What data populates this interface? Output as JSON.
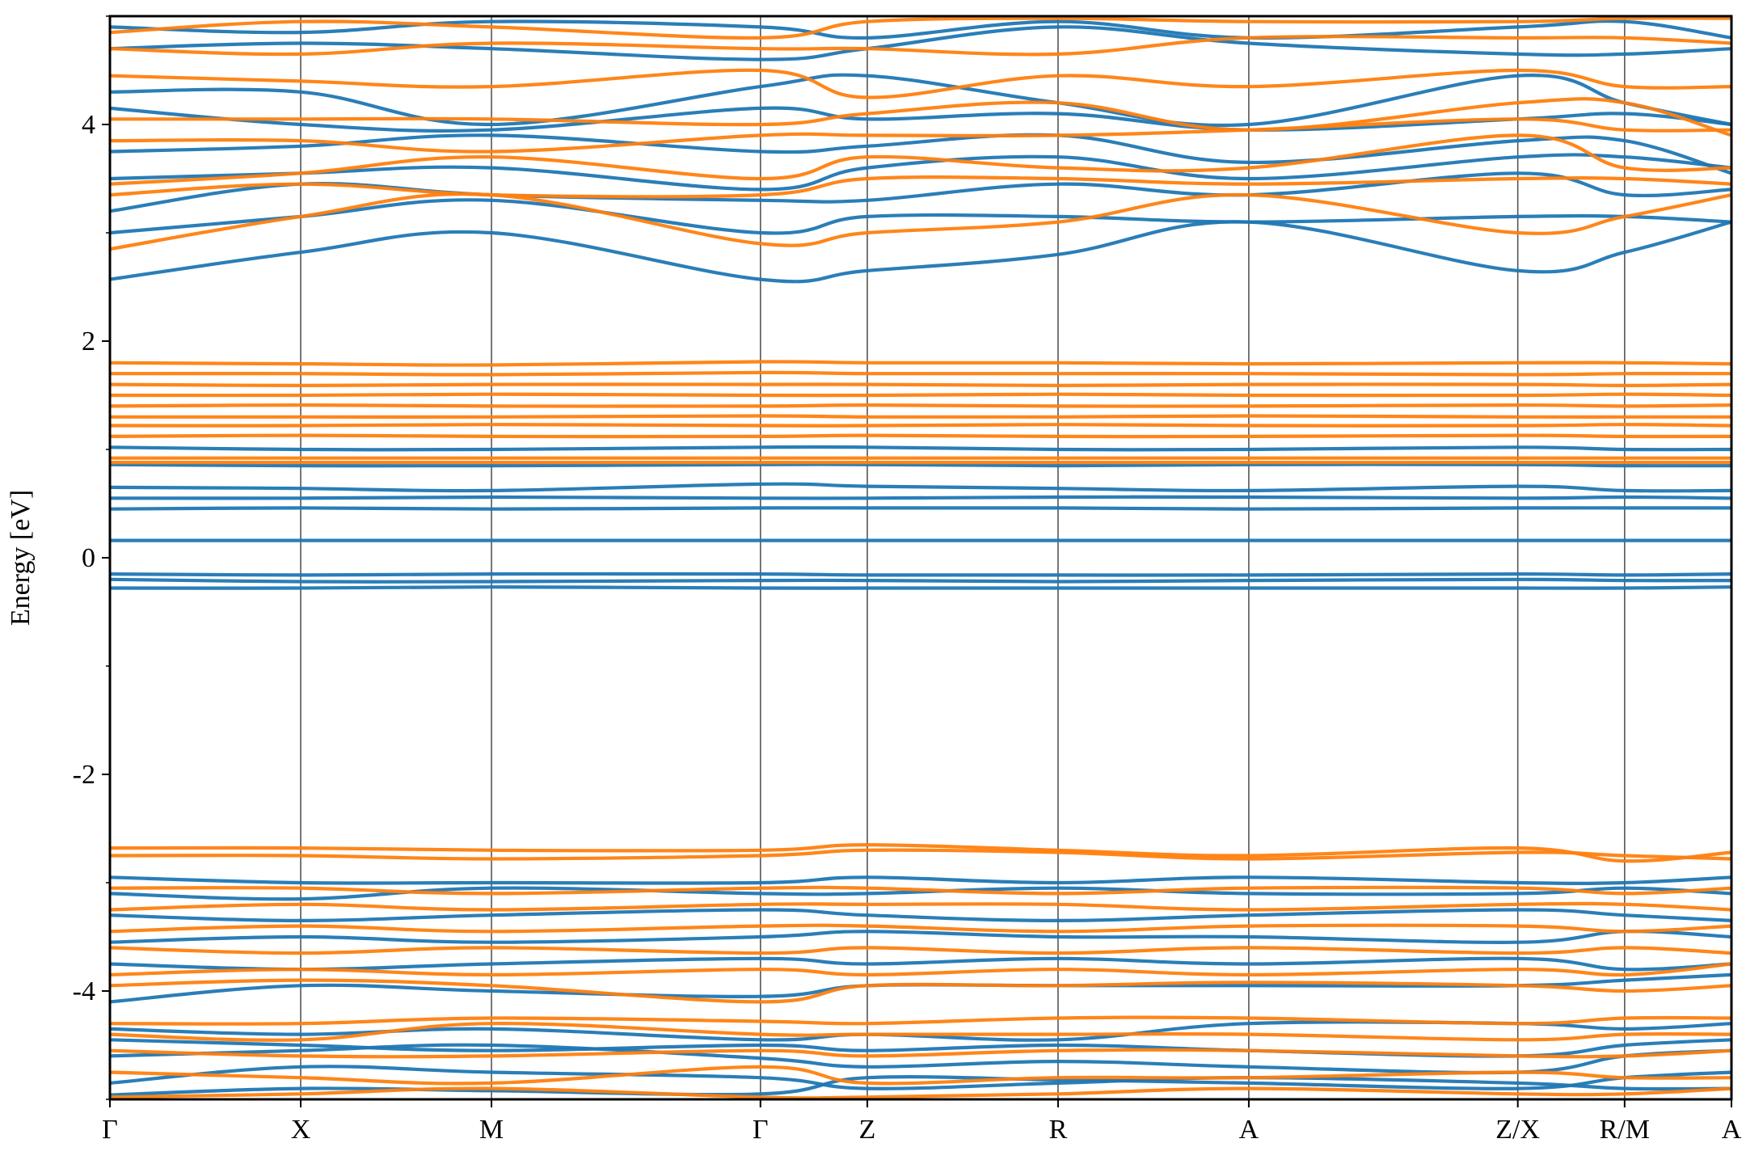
{
  "chart_data": {
    "type": "line",
    "title": "",
    "xlabel": "",
    "ylabel": "Energy [eV]",
    "ylim": [
      -5,
      5
    ],
    "yticks": [
      4,
      2,
      0,
      -2,
      -4
    ],
    "ytick_labels": [
      "4",
      "2",
      "0",
      "-2",
      "-4"
    ],
    "kpoints": [
      {
        "label": "Γ",
        "position": 0.0
      },
      {
        "label": "X",
        "position": 1.0
      },
      {
        "label": "M",
        "position": 2.0
      },
      {
        "label": "Γ",
        "position": 3.41
      },
      {
        "label": "Z",
        "position": 3.97
      },
      {
        "label": "R",
        "position": 4.97
      },
      {
        "label": "A",
        "position": 5.97
      },
      {
        "label": "Z/X",
        "position": 7.38
      },
      {
        "label": "R/M",
        "position": 7.94
      },
      {
        "label": "A",
        "position": 8.5
      }
    ],
    "grid": false,
    "legend": "none",
    "series": [
      {
        "color": "#1f77b4",
        "bands": [
          [
            -4.96,
            -4.9,
            -4.92,
            -4.95,
            -4.8,
            -4.82,
            -4.85,
            -4.9,
            -4.8,
            -4.75
          ],
          [
            -4.85,
            -4.7,
            -4.75,
            -4.8,
            -4.9,
            -4.85,
            -4.8,
            -4.85,
            -4.9,
            -4.9
          ],
          [
            -4.6,
            -4.55,
            -4.5,
            -4.62,
            -4.7,
            -4.65,
            -4.7,
            -4.75,
            -4.6,
            -4.55
          ],
          [
            -4.45,
            -4.5,
            -4.55,
            -4.5,
            -4.55,
            -4.5,
            -4.55,
            -4.6,
            -4.5,
            -4.45
          ],
          [
            -4.35,
            -4.4,
            -4.35,
            -4.45,
            -4.4,
            -4.45,
            -4.3,
            -4.3,
            -4.35,
            -4.3
          ],
          [
            -4.1,
            -3.95,
            -4.0,
            -4.05,
            -3.95,
            -3.95,
            -3.95,
            -3.95,
            -3.9,
            -3.85
          ],
          [
            -3.75,
            -3.8,
            -3.75,
            -3.7,
            -3.75,
            -3.7,
            -3.75,
            -3.7,
            -3.8,
            -3.75
          ],
          [
            -3.55,
            -3.5,
            -3.55,
            -3.5,
            -3.45,
            -3.5,
            -3.5,
            -3.55,
            -3.45,
            -3.5
          ],
          [
            -3.3,
            -3.35,
            -3.3,
            -3.25,
            -3.3,
            -3.35,
            -3.3,
            -3.25,
            -3.3,
            -3.35
          ],
          [
            -3.1,
            -3.15,
            -3.05,
            -3.1,
            -3.1,
            -3.05,
            -3.1,
            -3.1,
            -3.05,
            -3.1
          ],
          [
            -2.95,
            -3.0,
            -3.0,
            -3.0,
            -2.95,
            -3.0,
            -2.95,
            -3.0,
            -3.0,
            -2.95
          ],
          [
            -0.28,
            -0.28,
            -0.27,
            -0.28,
            -0.28,
            -0.28,
            -0.28,
            -0.28,
            -0.28,
            -0.27
          ],
          [
            -0.2,
            -0.22,
            -0.22,
            -0.21,
            -0.21,
            -0.22,
            -0.21,
            -0.2,
            -0.21,
            -0.21
          ],
          [
            -0.15,
            -0.16,
            -0.15,
            -0.15,
            -0.16,
            -0.16,
            -0.16,
            -0.15,
            -0.16,
            -0.15
          ],
          [
            0.16,
            0.16,
            0.16,
            0.16,
            0.16,
            0.16,
            0.16,
            0.16,
            0.16,
            0.16
          ],
          [
            0.45,
            0.46,
            0.45,
            0.46,
            0.46,
            0.46,
            0.45,
            0.46,
            0.46,
            0.46
          ],
          [
            0.55,
            0.55,
            0.56,
            0.55,
            0.55,
            0.56,
            0.56,
            0.55,
            0.56,
            0.55
          ],
          [
            0.65,
            0.64,
            0.62,
            0.68,
            0.66,
            0.64,
            0.62,
            0.66,
            0.62,
            0.62
          ],
          [
            0.86,
            0.85,
            0.85,
            0.86,
            0.86,
            0.85,
            0.86,
            0.86,
            0.85,
            0.85
          ],
          [
            1.02,
            1.0,
            1.0,
            1.02,
            1.02,
            1.0,
            1.0,
            1.02,
            1.0,
            1.0
          ],
          [
            2.57,
            2.82,
            3.0,
            2.57,
            2.65,
            2.8,
            3.1,
            2.65,
            2.82,
            3.1
          ],
          [
            3.0,
            3.15,
            3.3,
            3.0,
            3.15,
            3.15,
            3.1,
            3.15,
            3.15,
            3.1
          ],
          [
            3.2,
            3.45,
            3.35,
            3.3,
            3.3,
            3.45,
            3.35,
            3.55,
            3.35,
            3.4
          ],
          [
            3.5,
            3.55,
            3.6,
            3.4,
            3.6,
            3.7,
            3.5,
            3.7,
            3.7,
            3.6
          ],
          [
            3.75,
            3.8,
            3.9,
            3.75,
            3.8,
            3.9,
            3.65,
            3.85,
            3.85,
            3.55
          ],
          [
            4.15,
            4.0,
            3.95,
            4.15,
            4.05,
            4.1,
            3.95,
            4.05,
            4.1,
            4.0
          ],
          [
            4.3,
            4.3,
            4.0,
            4.35,
            4.45,
            4.2,
            4.0,
            4.45,
            4.2,
            4.0
          ],
          [
            4.7,
            4.75,
            4.7,
            4.6,
            4.7,
            4.9,
            4.75,
            4.65,
            4.65,
            4.7
          ],
          [
            4.9,
            4.85,
            4.95,
            4.9,
            4.8,
            4.95,
            4.8,
            4.9,
            4.95,
            4.8
          ]
        ]
      },
      {
        "color": "#ff7f0e",
        "bands": [
          [
            -4.98,
            -4.95,
            -4.9,
            -4.98,
            -4.98,
            -4.95,
            -4.9,
            -4.95,
            -4.95,
            -4.9
          ],
          [
            -4.75,
            -4.8,
            -4.85,
            -4.7,
            -4.85,
            -4.8,
            -4.8,
            -4.75,
            -4.8,
            -4.8
          ],
          [
            -4.55,
            -4.6,
            -4.6,
            -4.55,
            -4.6,
            -4.55,
            -4.55,
            -4.6,
            -4.6,
            -4.55
          ],
          [
            -4.4,
            -4.45,
            -4.3,
            -4.4,
            -4.4,
            -4.4,
            -4.4,
            -4.45,
            -4.4,
            -4.4
          ],
          [
            -4.3,
            -4.3,
            -4.25,
            -4.28,
            -4.3,
            -4.25,
            -4.25,
            -4.3,
            -4.25,
            -4.25
          ],
          [
            -3.95,
            -3.9,
            -3.95,
            -4.1,
            -3.95,
            -3.95,
            -3.92,
            -3.95,
            -4.0,
            -3.95
          ],
          [
            -3.85,
            -3.8,
            -3.85,
            -3.8,
            -3.85,
            -3.8,
            -3.85,
            -3.8,
            -3.85,
            -3.75
          ],
          [
            -3.6,
            -3.65,
            -3.6,
            -3.65,
            -3.6,
            -3.65,
            -3.6,
            -3.65,
            -3.6,
            -3.65
          ],
          [
            -3.45,
            -3.4,
            -3.45,
            -3.4,
            -3.4,
            -3.45,
            -3.4,
            -3.4,
            -3.45,
            -3.4
          ],
          [
            -3.25,
            -3.2,
            -3.25,
            -3.2,
            -3.2,
            -3.2,
            -3.25,
            -3.2,
            -3.2,
            -3.25
          ],
          [
            -3.05,
            -3.05,
            -3.1,
            -3.05,
            -3.05,
            -3.1,
            -3.05,
            -3.05,
            -3.1,
            -3.05
          ],
          [
            -2.75,
            -2.75,
            -2.78,
            -2.75,
            -2.7,
            -2.72,
            -2.78,
            -2.72,
            -2.75,
            -2.78
          ],
          [
            -2.68,
            -2.68,
            -2.7,
            -2.7,
            -2.65,
            -2.7,
            -2.75,
            -2.68,
            -2.8,
            -2.72
          ],
          [
            0.88,
            0.88,
            0.88,
            0.88,
            0.88,
            0.88,
            0.88,
            0.88,
            0.88,
            0.88
          ],
          [
            0.92,
            0.92,
            0.92,
            0.92,
            0.92,
            0.92,
            0.92,
            0.92,
            0.92,
            0.92
          ],
          [
            1.12,
            1.13,
            1.12,
            1.12,
            1.13,
            1.12,
            1.12,
            1.13,
            1.12,
            1.12
          ],
          [
            1.22,
            1.22,
            1.23,
            1.22,
            1.22,
            1.23,
            1.22,
            1.22,
            1.23,
            1.22
          ],
          [
            1.3,
            1.3,
            1.3,
            1.31,
            1.3,
            1.3,
            1.31,
            1.3,
            1.3,
            1.3
          ],
          [
            1.4,
            1.41,
            1.4,
            1.4,
            1.41,
            1.4,
            1.4,
            1.41,
            1.4,
            1.41
          ],
          [
            1.5,
            1.5,
            1.51,
            1.5,
            1.5,
            1.51,
            1.5,
            1.5,
            1.51,
            1.5
          ],
          [
            1.6,
            1.59,
            1.6,
            1.6,
            1.6,
            1.59,
            1.6,
            1.6,
            1.59,
            1.6
          ],
          [
            1.7,
            1.7,
            1.69,
            1.71,
            1.7,
            1.7,
            1.7,
            1.69,
            1.7,
            1.7
          ],
          [
            1.8,
            1.79,
            1.78,
            1.81,
            1.8,
            1.8,
            1.79,
            1.8,
            1.8,
            1.79
          ],
          [
            2.85,
            3.15,
            3.35,
            2.9,
            3.0,
            3.1,
            3.35,
            3.0,
            3.15,
            3.35
          ],
          [
            3.35,
            3.45,
            3.35,
            3.35,
            3.5,
            3.5,
            3.45,
            3.5,
            3.5,
            3.45
          ],
          [
            3.45,
            3.55,
            3.7,
            3.5,
            3.7,
            3.6,
            3.6,
            3.9,
            3.6,
            3.6
          ],
          [
            3.85,
            3.85,
            3.75,
            3.9,
            3.9,
            3.9,
            3.95,
            4.05,
            3.95,
            3.95
          ],
          [
            4.05,
            4.05,
            4.05,
            4.0,
            4.1,
            4.2,
            3.95,
            4.2,
            4.2,
            3.9
          ],
          [
            4.45,
            4.4,
            4.35,
            4.5,
            4.25,
            4.45,
            4.35,
            4.5,
            4.35,
            4.35
          ],
          [
            4.7,
            4.65,
            4.75,
            4.7,
            4.7,
            4.65,
            4.8,
            4.8,
            4.8,
            4.75
          ],
          [
            4.85,
            4.95,
            4.9,
            4.8,
            4.95,
            4.98,
            4.95,
            4.95,
            4.98,
            4.98
          ]
        ]
      }
    ]
  }
}
